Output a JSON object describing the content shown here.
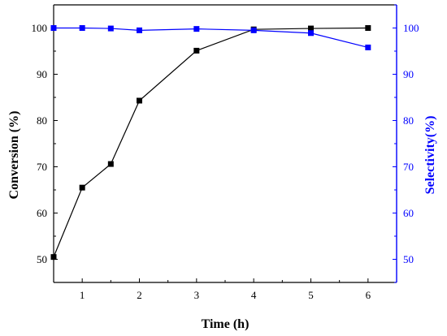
{
  "chart_data": {
    "type": "line",
    "title": "",
    "xlabel": "Time (h)",
    "ylabel_left": "Conversion (%)",
    "ylabel_right": "Selectivity(%)",
    "xlim": [
      0.5,
      6.5
    ],
    "ylim_left": [
      45,
      105
    ],
    "ylim_right": [
      45,
      105
    ],
    "x_ticks": [
      1,
      2,
      3,
      4,
      5,
      6
    ],
    "y_ticks_left": [
      50,
      60,
      70,
      80,
      90,
      100
    ],
    "y_ticks_right": [
      50,
      60,
      70,
      80,
      90,
      100
    ],
    "grid": false,
    "legend": "none",
    "series": [
      {
        "axis": "left",
        "color": "#000000",
        "marker": "square",
        "x": [
          0.5,
          1,
          1.5,
          2,
          3,
          4,
          5,
          6
        ],
        "values": [
          50.5,
          65.5,
          70.6,
          84.3,
          95.1,
          99.7,
          99.9,
          100
        ]
      },
      {
        "axis": "right",
        "color": "#0000ff",
        "marker": "square",
        "x": [
          0.5,
          1,
          1.5,
          2,
          3,
          4,
          5,
          6
        ],
        "values": [
          100,
          100,
          99.9,
          99.5,
          99.8,
          99.5,
          98.9,
          95.8
        ]
      }
    ]
  }
}
